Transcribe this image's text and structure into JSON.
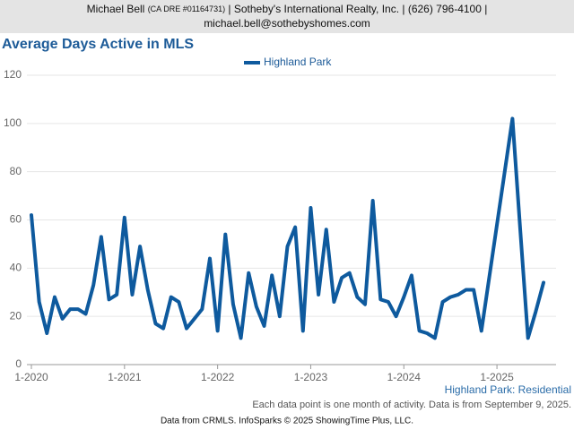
{
  "header": {
    "name": "Michael Bell",
    "license": "(CA DRE #01164731)",
    "company": "| Sotheby's International Realty, Inc. | (626) 796-4100 |",
    "email": "michael.bell@sothebyshomes.com"
  },
  "chart_data": {
    "type": "line",
    "title": "Average Days Active in MLS",
    "categories": [
      "1-2020",
      null,
      null,
      null,
      null,
      null,
      null,
      null,
      null,
      null,
      null,
      null,
      "1-2021",
      null,
      null,
      null,
      null,
      null,
      null,
      null,
      null,
      null,
      null,
      null,
      "1-2022",
      null,
      null,
      null,
      null,
      null,
      null,
      null,
      null,
      null,
      null,
      null,
      "1-2023",
      null,
      null,
      null,
      null,
      null,
      null,
      null,
      null,
      null,
      null,
      null,
      "1-2024",
      null,
      null,
      null,
      null,
      null,
      null,
      null,
      null,
      null,
      null,
      null,
      "1-2025",
      null,
      null,
      null,
      null,
      null,
      null
    ],
    "series": [
      {
        "name": "Highland Park",
        "color": "#0e5a9e",
        "values": [
          62,
          26,
          13,
          28,
          19,
          23,
          23,
          21,
          33,
          53,
          27,
          29,
          61,
          29,
          49,
          31,
          17,
          15,
          28,
          26,
          15,
          19,
          23,
          44,
          14,
          54,
          25,
          11,
          38,
          24,
          16,
          37,
          20,
          49,
          57,
          14,
          65,
          29,
          56,
          26,
          36,
          38,
          28,
          25,
          68,
          27,
          26,
          20,
          28,
          37,
          14,
          13,
          11,
          26,
          28,
          29,
          31,
          31,
          14,
          36,
          58,
          80,
          102,
          56,
          11,
          22,
          34
        ]
      }
    ],
    "ylim": [
      0,
      120
    ],
    "yticks": [
      0,
      20,
      40,
      60,
      80,
      100,
      120
    ],
    "grid": true,
    "legend": "top",
    "subtitle": "Highland Park: Residential",
    "note": "Each data point is one month of activity. Data is from September 9, 2025.",
    "source": "Data from CRMLS. InfoSparks © 2025 ShowingTime Plus, LLC."
  }
}
